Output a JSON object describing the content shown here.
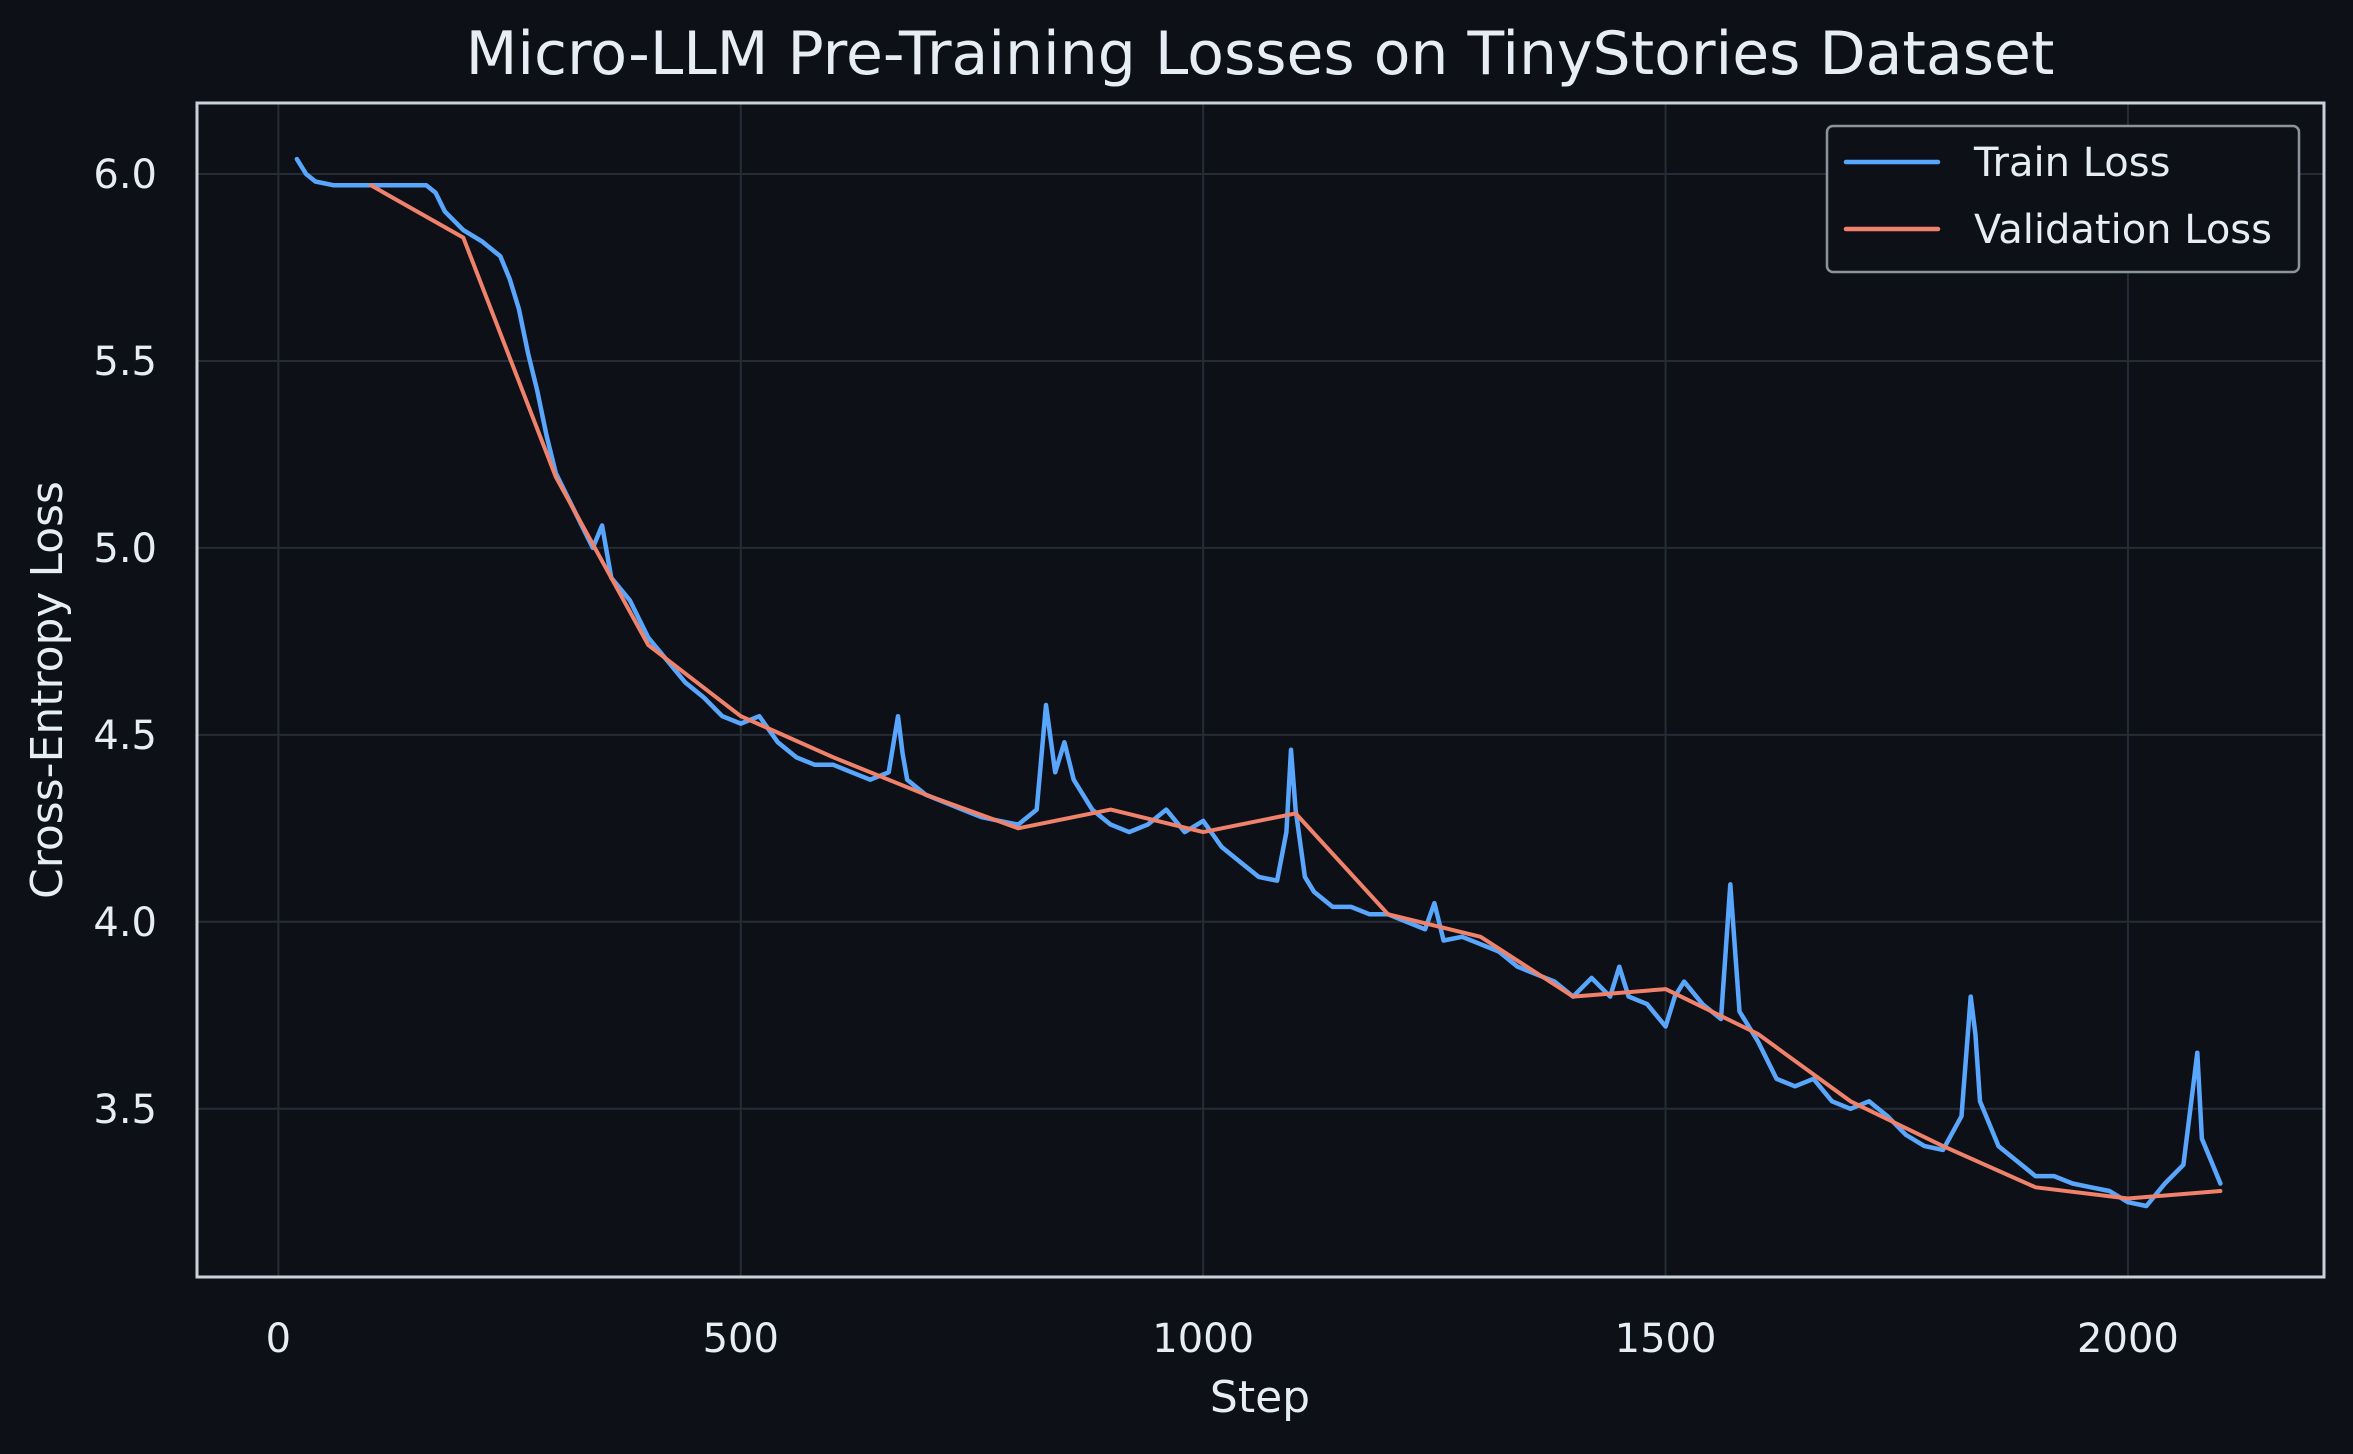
{
  "chart_data": {
    "type": "line",
    "title": "Micro-LLM Pre-Training Losses on TinyStories Dataset",
    "xlabel": "Step",
    "ylabel": "Cross-Entropy Loss",
    "xlim": [
      -88,
      2212
    ],
    "ylim": [
      3.05,
      6.19
    ],
    "x_ticks": [
      0,
      500,
      1000,
      1500,
      2000
    ],
    "y_ticks": [
      3.5,
      4.0,
      4.5,
      5.0,
      5.5,
      6.0
    ],
    "x_tick_labels": [
      "0",
      "500",
      "1000",
      "1500",
      "2000"
    ],
    "y_tick_labels": [
      "3.5",
      "4.0",
      "4.5",
      "5.0",
      "5.5",
      "6.0"
    ],
    "grid": true,
    "legend_position": "top-right",
    "colors": {
      "background": "#0d1117",
      "plot_background": "#0d1117",
      "axes_frame": "#c9d1d9",
      "grid": "#262c36",
      "text": "#e6edf3",
      "train": "#58a6ff",
      "validation": "#f0826b",
      "legend_border": "#8b949e"
    },
    "series": [
      {
        "name": "Train Loss",
        "key": "train",
        "x": [
          20,
          30,
          40,
          60,
          80,
          100,
          120,
          140,
          160,
          170,
          180,
          200,
          220,
          240,
          250,
          260,
          270,
          280,
          290,
          300,
          320,
          340,
          350,
          360,
          380,
          400,
          420,
          440,
          460,
          480,
          500,
          520,
          540,
          560,
          580,
          600,
          620,
          640,
          660,
          670,
          675,
          680,
          700,
          720,
          740,
          760,
          780,
          800,
          820,
          830,
          840,
          850,
          860,
          880,
          900,
          920,
          940,
          960,
          980,
          1000,
          1020,
          1040,
          1060,
          1080,
          1090,
          1095,
          1100,
          1110,
          1120,
          1140,
          1160,
          1180,
          1200,
          1220,
          1240,
          1250,
          1260,
          1280,
          1300,
          1320,
          1340,
          1360,
          1380,
          1400,
          1420,
          1440,
          1450,
          1460,
          1480,
          1500,
          1510,
          1520,
          1540,
          1560,
          1570,
          1580,
          1600,
          1620,
          1640,
          1660,
          1680,
          1700,
          1720,
          1740,
          1760,
          1780,
          1800,
          1820,
          1830,
          1835,
          1840,
          1860,
          1880,
          1900,
          1920,
          1940,
          1960,
          1980,
          2000,
          2020,
          2040,
          2060,
          2070,
          2075,
          2080,
          2090,
          2100
        ],
        "y": [
          6.04,
          6.0,
          5.98,
          5.97,
          5.97,
          5.97,
          5.97,
          5.97,
          5.97,
          5.95,
          5.9,
          5.85,
          5.82,
          5.78,
          5.72,
          5.64,
          5.52,
          5.42,
          5.3,
          5.2,
          5.1,
          5.0,
          5.06,
          4.92,
          4.86,
          4.76,
          4.7,
          4.64,
          4.6,
          4.55,
          4.53,
          4.55,
          4.48,
          4.44,
          4.42,
          4.42,
          4.4,
          4.38,
          4.4,
          4.55,
          4.45,
          4.38,
          4.34,
          4.32,
          4.3,
          4.28,
          4.27,
          4.26,
          4.3,
          4.58,
          4.4,
          4.48,
          4.38,
          4.3,
          4.26,
          4.24,
          4.26,
          4.3,
          4.24,
          4.27,
          4.2,
          4.16,
          4.12,
          4.11,
          4.24,
          4.46,
          4.3,
          4.12,
          4.08,
          4.04,
          4.04,
          4.02,
          4.02,
          4.0,
          3.98,
          4.05,
          3.95,
          3.96,
          3.94,
          3.92,
          3.88,
          3.86,
          3.84,
          3.8,
          3.85,
          3.8,
          3.88,
          3.8,
          3.78,
          3.72,
          3.8,
          3.84,
          3.78,
          3.74,
          4.1,
          3.76,
          3.68,
          3.58,
          3.56,
          3.58,
          3.52,
          3.5,
          3.52,
          3.48,
          3.43,
          3.4,
          3.39,
          3.48,
          3.8,
          3.7,
          3.52,
          3.4,
          3.36,
          3.32,
          3.32,
          3.3,
          3.29,
          3.28,
          3.25,
          3.24,
          3.3,
          3.35,
          3.55,
          3.65,
          3.42,
          3.36,
          3.3
        ]
      },
      {
        "name": "Validation Loss",
        "key": "validation",
        "x": [
          100,
          200,
          300,
          400,
          500,
          600,
          700,
          800,
          900,
          1000,
          1100,
          1200,
          1300,
          1400,
          1500,
          1600,
          1700,
          1800,
          1900,
          2000,
          2100
        ],
        "y": [
          5.97,
          5.83,
          5.19,
          4.74,
          4.55,
          4.44,
          4.34,
          4.25,
          4.3,
          4.24,
          4.29,
          4.02,
          3.96,
          3.8,
          3.82,
          3.7,
          3.52,
          3.4,
          3.29,
          3.26,
          3.28
        ]
      }
    ]
  }
}
